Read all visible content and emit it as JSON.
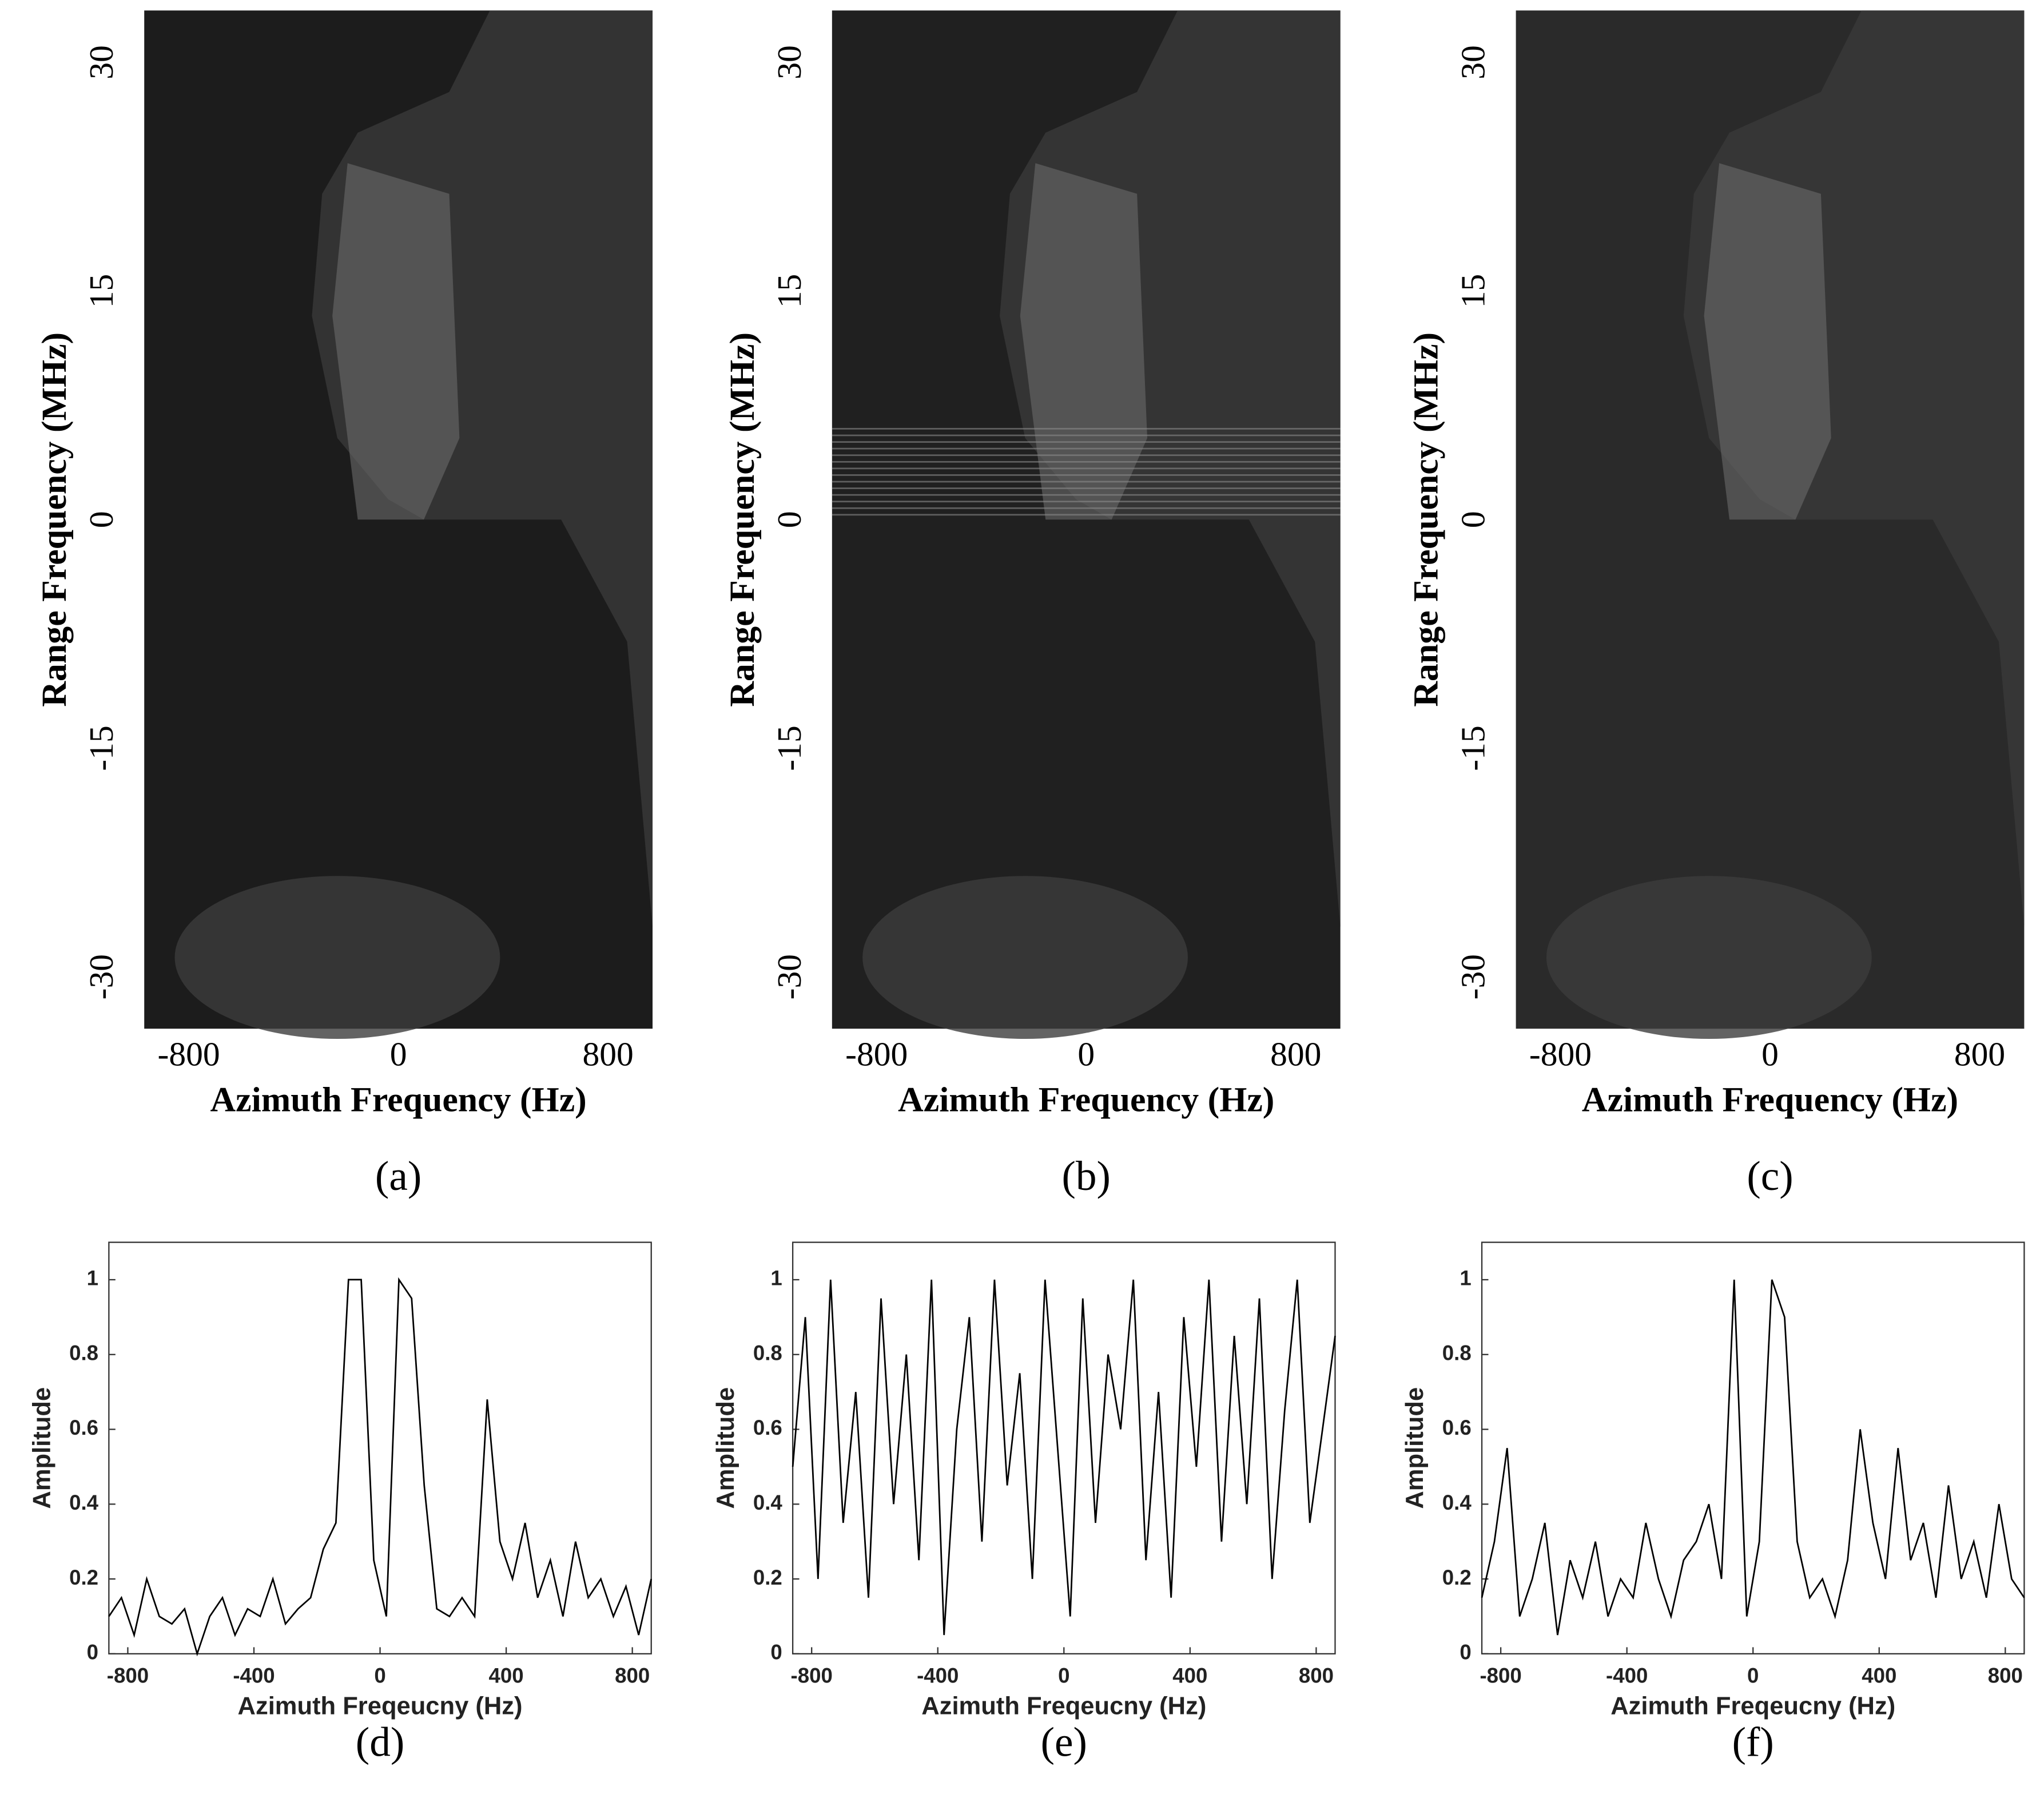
{
  "chart_data": [
    {
      "type": "image",
      "caption": "(a)",
      "xlabel": "Azimuth Frequency (Hz)",
      "ylabel": "Range Frequency (MHz)",
      "xlim": [
        -970,
        970
      ],
      "xticks": [
        -800,
        0,
        800
      ],
      "ylim": [
        -33.4,
        33.4
      ],
      "yticks": [
        -30,
        -15,
        0,
        15,
        30
      ]
    },
    {
      "type": "image",
      "caption": "(b)",
      "xlabel": "Azimuth Frequency (Hz)",
      "ylabel": "Range Frequency (MHz)",
      "xlim": [
        -970,
        970
      ],
      "xticks": [
        -800,
        0,
        800
      ],
      "ylim": [
        -33.4,
        33.4
      ],
      "yticks": [
        -30,
        -15,
        0,
        15,
        30
      ]
    },
    {
      "type": "image",
      "caption": "(c)",
      "xlabel": "Azimuth Frequency (Hz)",
      "ylabel": "Range Frequency (MHz)",
      "xlim": [
        -970,
        970
      ],
      "xticks": [
        -800,
        0,
        800
      ],
      "ylim": [
        -33.4,
        33.4
      ],
      "yticks": [
        -30,
        -15,
        0,
        15,
        30
      ]
    },
    {
      "type": "line",
      "caption": "(d)",
      "xlabel": "Azimuth Freqeucny (Hz)",
      "ylabel": "Amplitude",
      "color": "#000000",
      "xlim": [
        -860,
        860
      ],
      "xticks": [
        -800,
        -400,
        0,
        400,
        800
      ],
      "ylim": [
        0,
        1.1
      ],
      "yticks": [
        0,
        0.2,
        0.4,
        0.6,
        0.8,
        1
      ],
      "x": [
        -860,
        -820,
        -780,
        -740,
        -700,
        -660,
        -620,
        -580,
        -540,
        -500,
        -460,
        -420,
        -380,
        -340,
        -300,
        -260,
        -220,
        -180,
        -140,
        -100,
        -60,
        -20,
        20,
        60,
        100,
        140,
        180,
        220,
        260,
        300,
        340,
        380,
        420,
        460,
        500,
        540,
        580,
        620,
        660,
        700,
        740,
        780,
        820,
        860
      ],
      "values": [
        0.1,
        0.15,
        0.05,
        0.2,
        0.1,
        0.08,
        0.12,
        0.0,
        0.1,
        0.15,
        0.05,
        0.12,
        0.1,
        0.2,
        0.08,
        0.12,
        0.15,
        0.28,
        0.35,
        1,
        1,
        0.25,
        0.1,
        1,
        0.95,
        0.45,
        0.12,
        0.1,
        0.15,
        0.1,
        0.68,
        0.3,
        0.2,
        0.35,
        0.15,
        0.25,
        0.1,
        0.3,
        0.15,
        0.2,
        0.1,
        0.18,
        0.05,
        0.2
      ]
    },
    {
      "type": "line",
      "caption": "(e)",
      "xlabel": "Azimuth Freqeucny (Hz)",
      "ylabel": "Amplitude",
      "color": "#000000",
      "xlim": [
        -860,
        860
      ],
      "xticks": [
        -800,
        -400,
        0,
        400,
        800
      ],
      "ylim": [
        0,
        1.1
      ],
      "yticks": [
        0,
        0.2,
        0.4,
        0.6,
        0.8,
        1
      ],
      "x": [
        -860,
        -820,
        -780,
        -740,
        -700,
        -660,
        -620,
        -580,
        -540,
        -500,
        -460,
        -420,
        -380,
        -340,
        -300,
        -260,
        -220,
        -180,
        -140,
        -100,
        -60,
        -20,
        20,
        60,
        100,
        140,
        180,
        220,
        260,
        300,
        340,
        380,
        420,
        460,
        500,
        540,
        580,
        620,
        660,
        700,
        740,
        780,
        820,
        860
      ],
      "values": [
        0.5,
        0.9,
        0.2,
        1,
        0.35,
        0.7,
        0.15,
        0.95,
        0.4,
        0.8,
        0.25,
        1,
        0.05,
        0.6,
        0.9,
        0.3,
        1,
        0.45,
        0.75,
        0.2,
        1,
        0.55,
        0.1,
        0.95,
        0.35,
        0.8,
        0.6,
        1,
        0.25,
        0.7,
        0.15,
        0.9,
        0.5,
        1,
        0.3,
        0.85,
        0.4,
        0.95,
        0.2,
        0.65,
        1,
        0.35,
        0.6,
        0.85
      ]
    },
    {
      "type": "line",
      "caption": "(f)",
      "xlabel": "Azimuth Freqeucny (Hz)",
      "ylabel": "Amplitude",
      "color": "#000000",
      "xlim": [
        -860,
        860
      ],
      "xticks": [
        -800,
        -400,
        0,
        400,
        800
      ],
      "ylim": [
        0,
        1.1
      ],
      "yticks": [
        0,
        0.2,
        0.4,
        0.6,
        0.8,
        1
      ],
      "x": [
        -860,
        -820,
        -780,
        -740,
        -700,
        -660,
        -620,
        -580,
        -540,
        -500,
        -460,
        -420,
        -380,
        -340,
        -300,
        -260,
        -220,
        -180,
        -140,
        -100,
        -60,
        -20,
        20,
        60,
        100,
        140,
        180,
        220,
        260,
        300,
        340,
        380,
        420,
        460,
        500,
        540,
        580,
        620,
        660,
        700,
        740,
        780,
        820,
        860
      ],
      "values": [
        0.15,
        0.3,
        0.55,
        0.1,
        0.2,
        0.35,
        0.05,
        0.25,
        0.15,
        0.3,
        0.1,
        0.2,
        0.15,
        0.35,
        0.2,
        0.1,
        0.25,
        0.3,
        0.4,
        0.2,
        1,
        0.1,
        0.3,
        1,
        0.9,
        0.3,
        0.15,
        0.2,
        0.1,
        0.25,
        0.6,
        0.35,
        0.2,
        0.55,
        0.25,
        0.35,
        0.15,
        0.45,
        0.2,
        0.3,
        0.15,
        0.4,
        0.2,
        0.15
      ]
    }
  ]
}
